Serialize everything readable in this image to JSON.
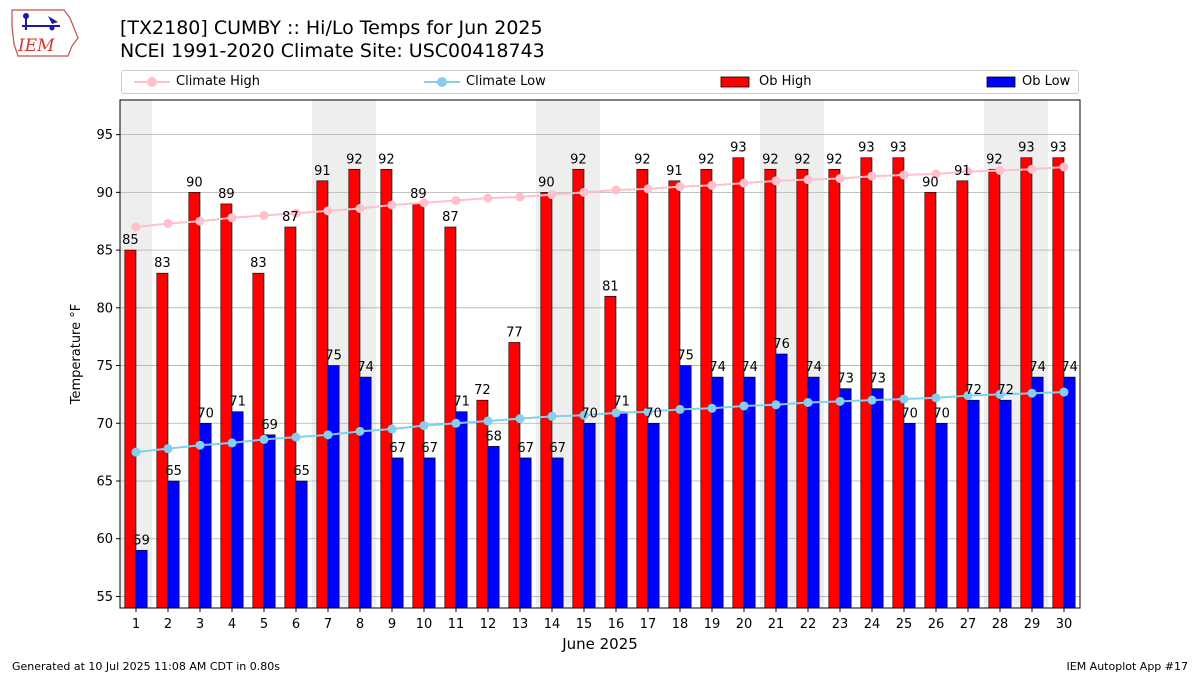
{
  "logo": {
    "text": "IEM"
  },
  "header": {
    "title_line1": "[TX2180] CUMBY :: Hi/Lo Temps for Jun 2025",
    "title_line2": "NCEI 1991-2020 Climate Site: USC00418743"
  },
  "footer": {
    "generated": "Generated at 10 Jul 2025 11:08 AM CDT in 0.80s",
    "app": "IEM Autoplot App #17"
  },
  "colors": {
    "ob_high": "#ff0000",
    "ob_low": "#0000ff",
    "climate_high": "#ffc0cb",
    "climate_low": "#87ceeb",
    "weekend_shade": "#eeeeee",
    "grid": "#b0b0b0"
  },
  "chart_data": {
    "type": "bar",
    "title": "[TX2180] CUMBY :: Hi/Lo Temps for Jun 2025",
    "subtitle": "NCEI 1991-2020 Climate Site: USC00418743",
    "xlabel": "June 2025",
    "ylabel": "Temperature °F",
    "ylim": [
      54,
      98
    ],
    "yticks": [
      55,
      60,
      65,
      70,
      75,
      80,
      85,
      90,
      95
    ],
    "grid": true,
    "legend_placement": "top",
    "categories": [
      "1",
      "2",
      "3",
      "4",
      "5",
      "6",
      "7",
      "8",
      "9",
      "10",
      "11",
      "12",
      "13",
      "14",
      "15",
      "16",
      "17",
      "18",
      "19",
      "20",
      "21",
      "22",
      "23",
      "24",
      "25",
      "26",
      "27",
      "28",
      "29",
      "30"
    ],
    "shaded_days": [
      1,
      7,
      8,
      14,
      15,
      21,
      22,
      28,
      29
    ],
    "series": [
      {
        "name": "Ob High",
        "kind": "bar",
        "color": "#ff0000",
        "values": [
          85,
          83,
          90,
          89,
          83,
          87,
          91,
          92,
          92,
          89,
          87,
          72,
          77,
          90,
          92,
          81,
          92,
          91,
          92,
          93,
          92,
          92,
          92,
          93,
          93,
          90,
          91,
          92,
          93,
          93
        ]
      },
      {
        "name": "Ob Low",
        "kind": "bar",
        "color": "#0000ff",
        "values": [
          59,
          65,
          70,
          71,
          69,
          65,
          75,
          74,
          67,
          67,
          71,
          68,
          67,
          67,
          70,
          71,
          70,
          75,
          74,
          74,
          76,
          74,
          73,
          73,
          70,
          70,
          72,
          72,
          74,
          74
        ]
      },
      {
        "name": "Climate High",
        "kind": "line",
        "color": "#ffc0cb",
        "values": [
          87.0,
          87.3,
          87.5,
          87.8,
          88.0,
          88.2,
          88.4,
          88.6,
          88.9,
          89.1,
          89.3,
          89.5,
          89.6,
          89.8,
          90.0,
          90.2,
          90.3,
          90.5,
          90.6,
          90.8,
          91.0,
          91.1,
          91.2,
          91.4,
          91.5,
          91.6,
          91.8,
          91.9,
          92.0,
          92.2
        ]
      },
      {
        "name": "Climate Low",
        "kind": "line",
        "color": "#87ceeb",
        "values": [
          67.5,
          67.8,
          68.1,
          68.3,
          68.6,
          68.8,
          69.0,
          69.3,
          69.5,
          69.8,
          70.0,
          70.2,
          70.4,
          70.6,
          70.7,
          70.9,
          71.0,
          71.2,
          71.3,
          71.5,
          71.6,
          71.8,
          71.9,
          72.0,
          72.1,
          72.2,
          72.4,
          72.5,
          72.6,
          72.7
        ]
      }
    ]
  }
}
